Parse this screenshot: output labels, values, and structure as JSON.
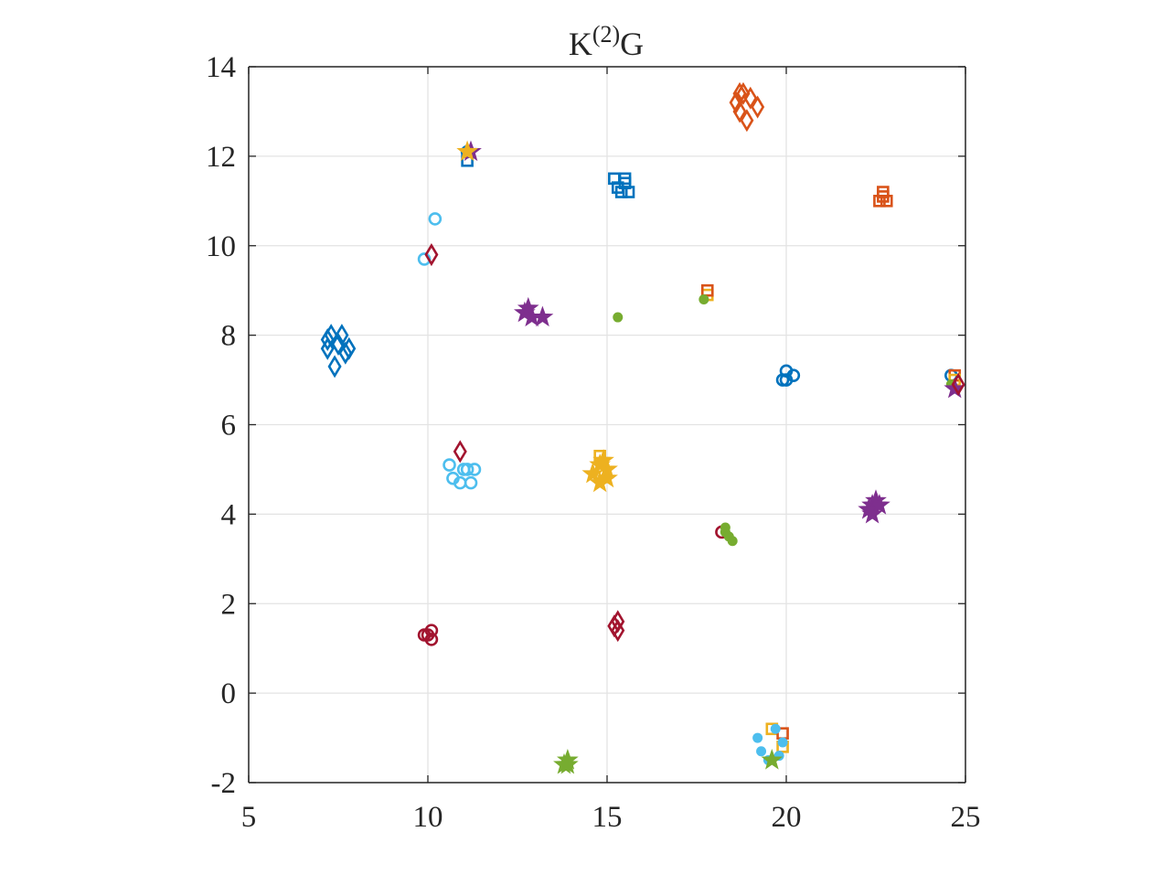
{
  "chart_data": {
    "type": "scatter",
    "title": {
      "main": "K",
      "sup": "(2)",
      "tail": "G"
    },
    "xlabel": "",
    "ylabel": "",
    "xlim": [
      5,
      25
    ],
    "ylim": [
      -2,
      14
    ],
    "xticks": [
      "5",
      "10",
      "15",
      "20",
      "25"
    ],
    "yticks": [
      "-2",
      "0",
      "2",
      "4",
      "6",
      "8",
      "10",
      "12",
      "14"
    ],
    "grid": true,
    "colors": {
      "blue": "#0072BD",
      "orange": "#D95319",
      "yellow": "#EDB120",
      "purple": "#7E2F8E",
      "green": "#77AC30",
      "cyan": "#4DBEEE",
      "red": "#A2142F"
    },
    "points": [
      {
        "x": 7.3,
        "y": 8.0,
        "marker": "diamond",
        "color": "blue"
      },
      {
        "x": 7.5,
        "y": 7.8,
        "marker": "diamond",
        "color": "blue"
      },
      {
        "x": 7.6,
        "y": 8.0,
        "marker": "diamond",
        "color": "blue"
      },
      {
        "x": 7.2,
        "y": 7.7,
        "marker": "diamond",
        "color": "blue"
      },
      {
        "x": 7.7,
        "y": 7.6,
        "marker": "diamond",
        "color": "blue"
      },
      {
        "x": 7.4,
        "y": 7.3,
        "marker": "diamond",
        "color": "blue"
      },
      {
        "x": 7.8,
        "y": 7.7,
        "marker": "diamond",
        "color": "blue"
      },
      {
        "x": 7.2,
        "y": 7.9,
        "marker": "diamond",
        "color": "blue"
      },
      {
        "x": 11.1,
        "y": 12.1,
        "marker": "circle",
        "color": "blue"
      },
      {
        "x": 11.1,
        "y": 11.9,
        "marker": "square",
        "color": "blue"
      },
      {
        "x": 11.2,
        "y": 12.1,
        "marker": "star",
        "color": "purple"
      },
      {
        "x": 11.1,
        "y": 12.1,
        "marker": "star",
        "color": "yellow"
      },
      {
        "x": 10.2,
        "y": 10.6,
        "marker": "circle",
        "color": "cyan"
      },
      {
        "x": 9.9,
        "y": 9.7,
        "marker": "circle",
        "color": "cyan"
      },
      {
        "x": 10.1,
        "y": 9.8,
        "marker": "diamond",
        "color": "red"
      },
      {
        "x": 15.2,
        "y": 11.5,
        "marker": "square",
        "color": "blue"
      },
      {
        "x": 15.5,
        "y": 11.5,
        "marker": "square",
        "color": "blue"
      },
      {
        "x": 15.3,
        "y": 11.3,
        "marker": "square",
        "color": "blue"
      },
      {
        "x": 15.6,
        "y": 11.2,
        "marker": "square",
        "color": "blue"
      },
      {
        "x": 15.4,
        "y": 11.2,
        "marker": "square",
        "color": "blue"
      },
      {
        "x": 15.5,
        "y": 11.4,
        "marker": "square",
        "color": "blue"
      },
      {
        "x": 18.8,
        "y": 13.4,
        "marker": "diamond",
        "color": "orange"
      },
      {
        "x": 18.6,
        "y": 13.2,
        "marker": "diamond",
        "color": "orange"
      },
      {
        "x": 19.0,
        "y": 13.3,
        "marker": "diamond",
        "color": "orange"
      },
      {
        "x": 19.2,
        "y": 13.1,
        "marker": "diamond",
        "color": "orange"
      },
      {
        "x": 18.7,
        "y": 13.0,
        "marker": "diamond",
        "color": "orange"
      },
      {
        "x": 18.9,
        "y": 12.8,
        "marker": "diamond",
        "color": "orange"
      },
      {
        "x": 18.7,
        "y": 13.4,
        "marker": "diamond",
        "color": "orange"
      },
      {
        "x": 22.6,
        "y": 11.0,
        "marker": "square",
        "color": "orange"
      },
      {
        "x": 22.7,
        "y": 11.1,
        "marker": "square",
        "color": "orange"
      },
      {
        "x": 22.8,
        "y": 11.0,
        "marker": "square",
        "color": "orange"
      },
      {
        "x": 22.7,
        "y": 11.2,
        "marker": "square",
        "color": "orange"
      },
      {
        "x": 12.7,
        "y": 8.5,
        "marker": "star",
        "color": "purple"
      },
      {
        "x": 12.9,
        "y": 8.4,
        "marker": "star",
        "color": "purple"
      },
      {
        "x": 13.2,
        "y": 8.4,
        "marker": "star",
        "color": "purple"
      },
      {
        "x": 12.8,
        "y": 8.6,
        "marker": "star",
        "color": "purple"
      },
      {
        "x": 15.3,
        "y": 8.4,
        "marker": "dot",
        "color": "green"
      },
      {
        "x": 17.8,
        "y": 8.9,
        "marker": "square",
        "color": "yellow"
      },
      {
        "x": 17.8,
        "y": 9.0,
        "marker": "square",
        "color": "orange"
      },
      {
        "x": 17.7,
        "y": 8.8,
        "marker": "dot",
        "color": "green"
      },
      {
        "x": 19.9,
        "y": 7.0,
        "marker": "circle",
        "color": "blue"
      },
      {
        "x": 20.0,
        "y": 7.2,
        "marker": "circle",
        "color": "blue"
      },
      {
        "x": 20.2,
        "y": 7.1,
        "marker": "circle",
        "color": "blue"
      },
      {
        "x": 20.0,
        "y": 7.0,
        "marker": "circle",
        "color": "blue"
      },
      {
        "x": 24.6,
        "y": 7.1,
        "marker": "circle",
        "color": "blue"
      },
      {
        "x": 24.7,
        "y": 7.1,
        "marker": "square",
        "color": "orange"
      },
      {
        "x": 24.7,
        "y": 7.0,
        "marker": "square",
        "color": "yellow"
      },
      {
        "x": 24.6,
        "y": 6.9,
        "marker": "dot",
        "color": "green"
      },
      {
        "x": 24.7,
        "y": 6.8,
        "marker": "star",
        "color": "purple"
      },
      {
        "x": 24.8,
        "y": 6.9,
        "marker": "diamond",
        "color": "red"
      },
      {
        "x": 10.9,
        "y": 5.4,
        "marker": "diamond",
        "color": "red"
      },
      {
        "x": 10.6,
        "y": 5.1,
        "marker": "circle",
        "color": "cyan"
      },
      {
        "x": 10.7,
        "y": 4.8,
        "marker": "circle",
        "color": "cyan"
      },
      {
        "x": 10.9,
        "y": 4.7,
        "marker": "circle",
        "color": "cyan"
      },
      {
        "x": 11.0,
        "y": 5.0,
        "marker": "circle",
        "color": "cyan"
      },
      {
        "x": 11.2,
        "y": 4.7,
        "marker": "circle",
        "color": "cyan"
      },
      {
        "x": 11.3,
        "y": 5.0,
        "marker": "circle",
        "color": "cyan"
      },
      {
        "x": 11.1,
        "y": 5.0,
        "marker": "circle",
        "color": "cyan"
      },
      {
        "x": 14.8,
        "y": 5.3,
        "marker": "square",
        "color": "yellow"
      },
      {
        "x": 14.6,
        "y": 4.9,
        "marker": "star",
        "color": "yellow"
      },
      {
        "x": 14.8,
        "y": 5.1,
        "marker": "star",
        "color": "yellow"
      },
      {
        "x": 15.0,
        "y": 5.0,
        "marker": "star",
        "color": "yellow"
      },
      {
        "x": 14.8,
        "y": 4.7,
        "marker": "star",
        "color": "yellow"
      },
      {
        "x": 15.0,
        "y": 4.8,
        "marker": "star",
        "color": "yellow"
      },
      {
        "x": 14.9,
        "y": 5.2,
        "marker": "star",
        "color": "yellow"
      },
      {
        "x": 22.4,
        "y": 4.2,
        "marker": "star",
        "color": "purple"
      },
      {
        "x": 22.5,
        "y": 4.3,
        "marker": "star",
        "color": "purple"
      },
      {
        "x": 22.3,
        "y": 4.1,
        "marker": "star",
        "color": "purple"
      },
      {
        "x": 22.6,
        "y": 4.2,
        "marker": "star",
        "color": "purple"
      },
      {
        "x": 22.4,
        "y": 4.0,
        "marker": "star",
        "color": "purple"
      },
      {
        "x": 18.2,
        "y": 3.6,
        "marker": "circle",
        "color": "red"
      },
      {
        "x": 18.3,
        "y": 3.7,
        "marker": "dot",
        "color": "green"
      },
      {
        "x": 18.4,
        "y": 3.5,
        "marker": "dot",
        "color": "green"
      },
      {
        "x": 18.5,
        "y": 3.4,
        "marker": "dot",
        "color": "green"
      },
      {
        "x": 18.3,
        "y": 3.6,
        "marker": "dot",
        "color": "green"
      },
      {
        "x": 10.0,
        "y": 1.3,
        "marker": "circle",
        "color": "red"
      },
      {
        "x": 10.1,
        "y": 1.4,
        "marker": "circle",
        "color": "red"
      },
      {
        "x": 10.1,
        "y": 1.2,
        "marker": "circle",
        "color": "red"
      },
      {
        "x": 9.9,
        "y": 1.3,
        "marker": "circle",
        "color": "red"
      },
      {
        "x": 15.3,
        "y": 1.6,
        "marker": "diamond",
        "color": "red"
      },
      {
        "x": 15.3,
        "y": 1.4,
        "marker": "diamond",
        "color": "red"
      },
      {
        "x": 15.2,
        "y": 1.5,
        "marker": "diamond",
        "color": "red"
      },
      {
        "x": 13.9,
        "y": -1.5,
        "marker": "star",
        "color": "green"
      },
      {
        "x": 13.9,
        "y": -1.6,
        "marker": "star",
        "color": "green"
      },
      {
        "x": 13.8,
        "y": -1.6,
        "marker": "star",
        "color": "green"
      },
      {
        "x": 19.6,
        "y": -0.8,
        "marker": "square",
        "color": "yellow"
      },
      {
        "x": 19.9,
        "y": -0.9,
        "marker": "square",
        "color": "orange"
      },
      {
        "x": 19.9,
        "y": -1.2,
        "marker": "square",
        "color": "yellow"
      },
      {
        "x": 19.2,
        "y": -1.0,
        "marker": "dot",
        "color": "cyan"
      },
      {
        "x": 19.3,
        "y": -1.3,
        "marker": "dot",
        "color": "cyan"
      },
      {
        "x": 19.5,
        "y": -1.5,
        "marker": "dot",
        "color": "cyan"
      },
      {
        "x": 19.8,
        "y": -1.4,
        "marker": "dot",
        "color": "cyan"
      },
      {
        "x": 19.9,
        "y": -1.1,
        "marker": "dot",
        "color": "cyan"
      },
      {
        "x": 19.7,
        "y": -0.8,
        "marker": "dot",
        "color": "cyan"
      },
      {
        "x": 19.6,
        "y": -1.5,
        "marker": "star",
        "color": "green"
      }
    ]
  }
}
